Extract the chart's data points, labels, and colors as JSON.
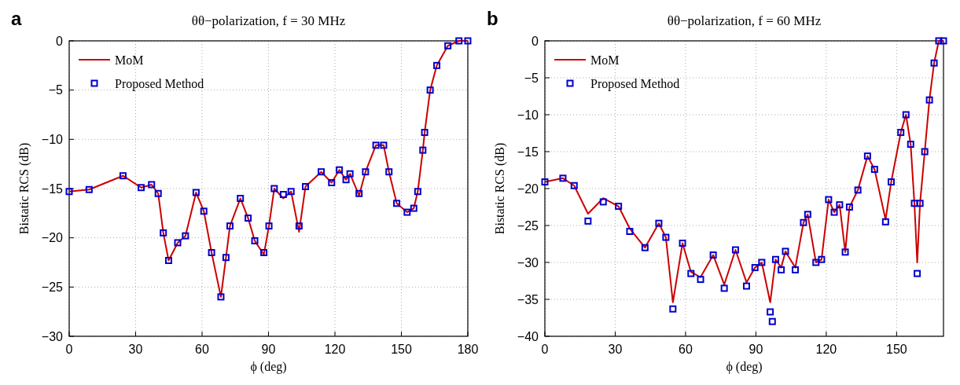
{
  "chart_data": [
    {
      "type": "line",
      "title": "θθ−polarization, f = 30 MHz",
      "xlabel": "ϕ (deg)",
      "ylabel": "Bistatic RCS (dB)",
      "annotations": [
        "a"
      ],
      "xlim": [
        0,
        180
      ],
      "xticks": [
        0,
        30,
        60,
        90,
        120,
        150,
        180
      ],
      "ylim": [
        -30,
        0
      ],
      "yticks": [
        -30,
        -25,
        -20,
        -15,
        -10,
        -5,
        0
      ],
      "grid": true,
      "legend": "top left",
      "series": [
        {
          "name": "MoM",
          "color": "#cc0000",
          "line_style": "solid",
          "x": [
            0,
            9,
            24.3,
            32.5,
            37.2,
            40.2,
            42.5,
            44.9,
            49,
            52.5,
            57.3,
            60.8,
            64.3,
            68.5,
            70.8,
            72.6,
            77.3,
            80.8,
            83.8,
            87.9,
            90.2,
            92.6,
            96.7,
            100.2,
            103.8,
            106.7,
            113.8,
            118.5,
            122,
            125,
            126.8,
            130.9,
            133.8,
            138.5,
            142,
            144.4,
            147.9,
            152.6,
            155.6,
            157.4,
            159.7,
            160.5,
            163,
            166,
            171,
            176,
            180
          ],
          "values": [
            -15.3,
            -15.1,
            -13.7,
            -14.9,
            -14.6,
            -15.5,
            -19.5,
            -22.3,
            -20.5,
            -19.8,
            -15.4,
            -17.3,
            -21.5,
            -26,
            -22,
            -18.8,
            -16,
            -18,
            -20.3,
            -21.7,
            -18.8,
            -15,
            -16,
            -15.3,
            -19.4,
            -14.8,
            -13.3,
            -14.4,
            -13.1,
            -14.1,
            -13.5,
            -15.7,
            -13.3,
            -10.6,
            -10.6,
            -13.3,
            -16.5,
            -17.4,
            -17,
            -15.3,
            -11.1,
            -9.3,
            -5,
            -2.5,
            -0.5,
            0,
            0
          ]
        },
        {
          "name": "Proposed Method",
          "type": "scatter",
          "color": "#0000cc",
          "marker": "square",
          "x": [
            0,
            9,
            24.3,
            32.5,
            37.2,
            40.2,
            42.5,
            44.9,
            49,
            52.5,
            57.3,
            60.8,
            64.3,
            68.5,
            70.8,
            72.6,
            77.3,
            80.8,
            83.8,
            87.9,
            90.2,
            92.6,
            96.7,
            100.2,
            103.8,
            106.7,
            113.8,
            118.5,
            122,
            125,
            126.8,
            130.9,
            133.8,
            138.5,
            142,
            144.4,
            147.9,
            152.6,
            155.6,
            157.4,
            159.7,
            160.5,
            163,
            166,
            171,
            176,
            180
          ],
          "values": [
            -15.3,
            -15.1,
            -13.7,
            -14.9,
            -14.6,
            -15.5,
            -19.5,
            -22.3,
            -20.5,
            -19.8,
            -15.4,
            -17.3,
            -21.5,
            -26,
            -22,
            -18.8,
            -16,
            -18,
            -20.3,
            -21.5,
            -18.8,
            -15,
            -15.6,
            -15.3,
            -18.8,
            -14.8,
            -13.3,
            -14.4,
            -13.1,
            -14.1,
            -13.5,
            -15.5,
            -13.3,
            -10.6,
            -10.6,
            -13.3,
            -16.5,
            -17.4,
            -17,
            -15.3,
            -11.1,
            -9.3,
            -5,
            -2.5,
            -0.5,
            0,
            0
          ]
        }
      ]
    },
    {
      "type": "line",
      "title": "θθ−polarization, f = 60 MHz",
      "xlabel": "ϕ (deg)",
      "ylabel": "Bistatic RCS (dB)",
      "annotations": [
        "b"
      ],
      "xlim": [
        0,
        170
      ],
      "xticks": [
        0,
        30,
        60,
        90,
        120,
        150
      ],
      "ylim": [
        -40,
        0
      ],
      "yticks": [
        -40,
        -35,
        -30,
        -25,
        -20,
        -15,
        -10,
        -5,
        0
      ],
      "grid": true,
      "legend": "top left",
      "series": [
        {
          "name": "MoM",
          "color": "#cc0000",
          "line_style": "solid",
          "x": [
            0,
            7.7,
            12.5,
            18.4,
            24.9,
            31.4,
            36.2,
            42.7,
            48.6,
            51.6,
            54.6,
            58.7,
            62.3,
            66.4,
            71.8,
            76.5,
            81.3,
            86,
            89.6,
            92.5,
            96.1,
            98.4,
            100.8,
            102.6,
            106.8,
            110.3,
            112.1,
            115.6,
            118,
            121,
            123.4,
            125.7,
            128.1,
            129.9,
            133.5,
            137.6,
            140.6,
            145.3,
            147.7,
            151.8,
            154,
            156,
            157.6,
            158.8,
            160,
            162,
            164,
            166,
            168,
            170
          ],
          "values": [
            -19.1,
            -18.6,
            -19.6,
            -23.4,
            -21.3,
            -22.4,
            -25.4,
            -28,
            -24.7,
            -26.6,
            -35.4,
            -27.4,
            -31.3,
            -32,
            -29,
            -33,
            -28.3,
            -32.7,
            -30.7,
            -30,
            -35.4,
            -29.6,
            -30.7,
            -28.5,
            -30.7,
            -24.6,
            -23.5,
            -30,
            -29.6,
            -21.5,
            -23.2,
            -22.2,
            -28.6,
            -22.5,
            -20.2,
            -15.6,
            -17.4,
            -24.2,
            -19.1,
            -12.4,
            -10,
            -14,
            -22,
            -30,
            -22,
            -15,
            -8,
            -3,
            0,
            0
          ]
        },
        {
          "name": "Proposed Method",
          "type": "scatter",
          "color": "#0000cc",
          "marker": "square",
          "x": [
            0,
            7.7,
            12.5,
            18.4,
            24.9,
            31.4,
            36.2,
            42.7,
            48.6,
            51.6,
            54.6,
            58.7,
            62.3,
            66.4,
            71.8,
            76.5,
            81.3,
            86,
            89.6,
            92.5,
            96.1,
            97,
            98.4,
            100.8,
            102.6,
            106.8,
            110.3,
            112.1,
            115.6,
            118,
            121,
            123.4,
            125.7,
            128.1,
            129.9,
            133.5,
            137.6,
            140.6,
            145.3,
            147.7,
            151.8,
            154,
            156,
            157.6,
            158.8,
            160,
            162,
            164,
            166,
            168,
            170
          ],
          "values": [
            -19.1,
            -18.6,
            -19.6,
            -24.4,
            -21.8,
            -22.4,
            -25.8,
            -28,
            -24.7,
            -26.6,
            -36.3,
            -27.4,
            -31.5,
            -32.3,
            -29,
            -33.5,
            -28.3,
            -33.2,
            -30.7,
            -30,
            -36.7,
            -38,
            -29.6,
            -31,
            -28.5,
            -31,
            -24.6,
            -23.5,
            -30,
            -29.6,
            -21.5,
            -23.2,
            -22.2,
            -28.6,
            -22.5,
            -20.2,
            -15.6,
            -17.4,
            -24.5,
            -19.1,
            -12.4,
            -10,
            -14,
            -22,
            -31.5,
            -22,
            -15,
            -8,
            -3,
            0,
            0
          ]
        }
      ]
    }
  ]
}
